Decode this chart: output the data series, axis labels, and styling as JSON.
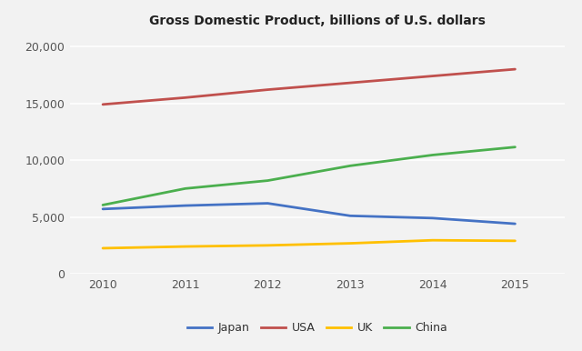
{
  "title": "Gross Domestic Product, billions of U.S. dollars",
  "years": [
    2010,
    2011,
    2012,
    2013,
    2014,
    2015
  ],
  "series": {
    "Japan": {
      "values": [
        5700,
        6000,
        6200,
        5100,
        4900,
        4400
      ],
      "color": "#4472C4"
    },
    "USA": {
      "values": [
        14900,
        15500,
        16200,
        16800,
        17400,
        18000
      ],
      "color": "#C0504D"
    },
    "UK": {
      "values": [
        2250,
        2400,
        2500,
        2680,
        2950,
        2900
      ],
      "color": "#FFC000"
    },
    "China": {
      "values": [
        6050,
        7500,
        8200,
        9500,
        10450,
        11150
      ],
      "color": "#4BAF4E"
    }
  },
  "xlim": [
    2009.6,
    2015.6
  ],
  "ylim": [
    0,
    21000
  ],
  "yticks": [
    0,
    5000,
    10000,
    15000,
    20000
  ],
  "ytick_labels": [
    "0",
    "5,000",
    "10,000",
    "15,000",
    "20,000"
  ],
  "xticks": [
    2010,
    2011,
    2012,
    2013,
    2014,
    2015
  ],
  "legend_order": [
    "Japan",
    "USA",
    "UK",
    "China"
  ],
  "figure_bg": "#F2F2F2",
  "plot_bg": "#F2F2F2",
  "grid_color": "#FFFFFF",
  "title_fontsize": 10,
  "tick_fontsize": 9,
  "legend_fontsize": 9
}
